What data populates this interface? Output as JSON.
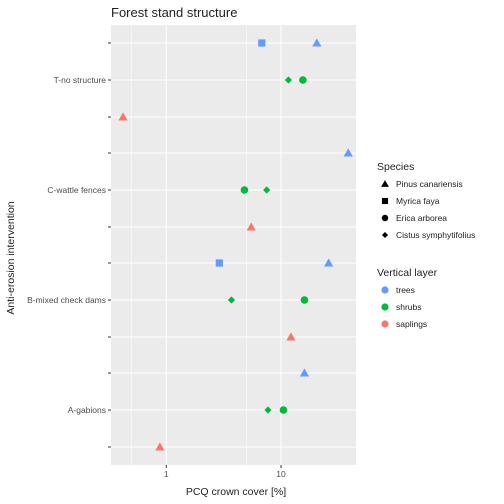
{
  "chart_data": {
    "type": "scatter",
    "title": "Forest stand structure",
    "xlabel": "PCQ crown cover [%]",
    "ylabel": "Anti-erosion intervention",
    "x_scale": "log10",
    "xlim": [
      0.33,
      45
    ],
    "x_ticks": [
      {
        "value": 1,
        "label": "1"
      },
      {
        "value": 10,
        "label": "10"
      }
    ],
    "categories": [
      "A-gabions",
      "B-mixed check dams",
      "C-wattle fences",
      "T-no structure"
    ],
    "grid": true,
    "colors": {
      "panel": "#ebebeb",
      "grid": "#ffffff",
      "trees": "#619cff",
      "shrubs": "#00ba38",
      "saplings": "#f8766d"
    },
    "legend": {
      "placement": "right",
      "shape_title": "Species",
      "shape_entries": [
        {
          "shape": "triangle",
          "label": "Pinus canariensis"
        },
        {
          "shape": "square",
          "label": "Myrica faya"
        },
        {
          "shape": "circle",
          "label": "Erica arborea"
        },
        {
          "shape": "diamond",
          "label": "Cistus  symphytifolius"
        }
      ],
      "color_title": "Vertical layer",
      "color_entries": [
        {
          "layer": "trees",
          "label": "trees"
        },
        {
          "layer": "shrubs",
          "label": "shrubs"
        },
        {
          "layer": "saplings",
          "label": "saplings"
        }
      ]
    },
    "points": [
      {
        "category": "T-no structure",
        "layer": "trees",
        "species": "Myrica faya",
        "shape": "square",
        "x": 6.8
      },
      {
        "category": "T-no structure",
        "layer": "trees",
        "species": "Pinus canariensis",
        "shape": "triangle",
        "x": 20.5
      },
      {
        "category": "T-no structure",
        "layer": "shrubs",
        "species": "Cistus  symphytifolius",
        "shape": "diamond",
        "x": 11.6
      },
      {
        "category": "T-no structure",
        "layer": "shrubs",
        "species": "Erica arborea",
        "shape": "circle",
        "x": 15.5
      },
      {
        "category": "T-no structure",
        "layer": "saplings",
        "species": "Pinus canariensis",
        "shape": "triangle",
        "x": 0.42
      },
      {
        "category": "C-wattle fences",
        "layer": "trees",
        "species": "Pinus canariensis",
        "shape": "triangle",
        "x": 38.5
      },
      {
        "category": "C-wattle fences",
        "layer": "shrubs",
        "species": "Erica arborea",
        "shape": "circle",
        "x": 4.8
      },
      {
        "category": "C-wattle fences",
        "layer": "shrubs",
        "species": "Cistus  symphytifolius",
        "shape": "diamond",
        "x": 7.5
      },
      {
        "category": "C-wattle fences",
        "layer": "saplings",
        "species": "Pinus canariensis",
        "shape": "triangle",
        "x": 5.5
      },
      {
        "category": "B-mixed check dams",
        "layer": "trees",
        "species": "Myrica faya",
        "shape": "square",
        "x": 2.9
      },
      {
        "category": "B-mixed check dams",
        "layer": "trees",
        "species": "Pinus canariensis",
        "shape": "triangle",
        "x": 26
      },
      {
        "category": "B-mixed check dams",
        "layer": "shrubs",
        "species": "Cistus  symphytifolius",
        "shape": "diamond",
        "x": 3.7
      },
      {
        "category": "B-mixed check dams",
        "layer": "shrubs",
        "species": "Erica arborea",
        "shape": "circle",
        "x": 16
      },
      {
        "category": "B-mixed check dams",
        "layer": "saplings",
        "species": "Pinus canariensis",
        "shape": "triangle",
        "x": 12.2
      },
      {
        "category": "A-gabions",
        "layer": "trees",
        "species": "Pinus canariensis",
        "shape": "triangle",
        "x": 16
      },
      {
        "category": "A-gabions",
        "layer": "shrubs",
        "species": "Cistus  symphytifolius",
        "shape": "diamond",
        "x": 7.7
      },
      {
        "category": "A-gabions",
        "layer": "shrubs",
        "species": "Erica arborea",
        "shape": "circle",
        "x": 10.5
      },
      {
        "category": "A-gabions",
        "layer": "saplings",
        "species": "Pinus canariensis",
        "shape": "triangle",
        "x": 0.88
      }
    ]
  }
}
